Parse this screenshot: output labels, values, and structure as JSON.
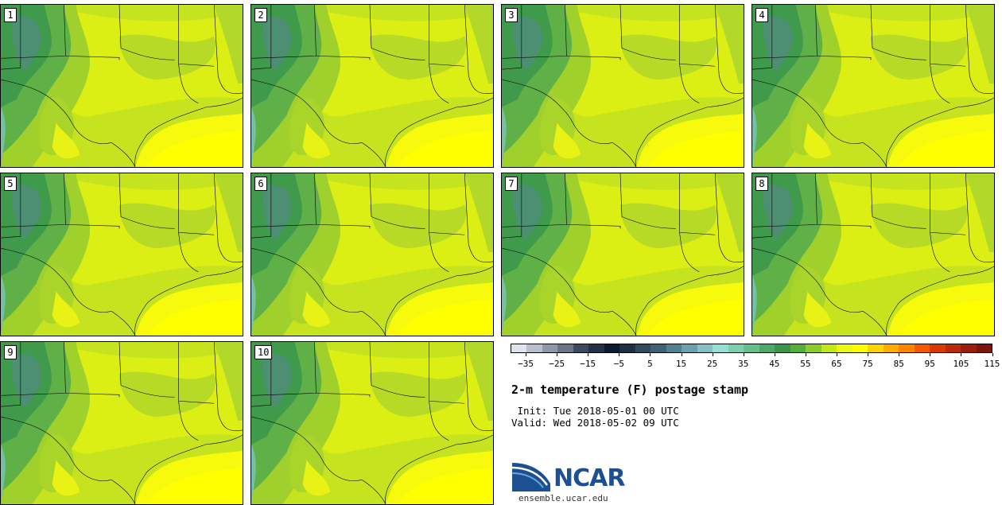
{
  "panels": [
    {
      "label": "1"
    },
    {
      "label": "2"
    },
    {
      "label": "3"
    },
    {
      "label": "4"
    },
    {
      "label": "5"
    },
    {
      "label": "6"
    },
    {
      "label": "7"
    },
    {
      "label": "8"
    },
    {
      "label": "9"
    },
    {
      "label": "10"
    }
  ],
  "colorbar": {
    "colors": [
      "#dfe3ec",
      "#b9bfcc",
      "#8f98a8",
      "#6b7587",
      "#3c4a5e",
      "#22304a",
      "#0c1a30",
      "#1f2f45",
      "#34495e",
      "#3d6274",
      "#508193",
      "#6aa1ad",
      "#83c1c4",
      "#94dfd6",
      "#7ecfb0",
      "#64bf8c",
      "#4aab68",
      "#3a9548",
      "#55ad3a",
      "#8ccc29",
      "#c2e81a",
      "#eef712",
      "#ffff00",
      "#ffd300",
      "#ffae00",
      "#ff8500",
      "#f15a00",
      "#d93a00",
      "#bb2a05",
      "#9c1d0a",
      "#7d150d"
    ],
    "tick_labels": [
      "−35",
      "−25",
      "−15",
      "−5",
      "5",
      "15",
      "25",
      "35",
      "45",
      "55",
      "65",
      "75",
      "85",
      "95",
      "105",
      "115"
    ]
  },
  "title": "2-m temperature (F) postage stamp",
  "init": " Init: Tue 2018-05-01 00 UTC",
  "valid": "Valid: Wed 2018-05-02 09 UTC",
  "logo": {
    "text": "NCAR",
    "colors": {
      "blue": "#1d4f93",
      "light_blue": "#6aa8d8"
    }
  },
  "site": "ensemble.ucar.edu"
}
